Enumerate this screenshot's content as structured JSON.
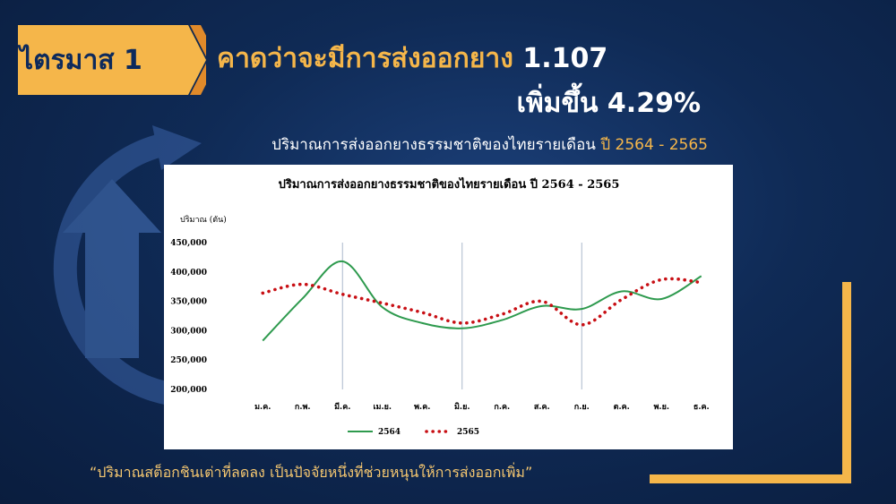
{
  "badge": {
    "label": "ไตรมาส 1"
  },
  "headline": {
    "line1": "คาดว่าจะมีการส่งออกยาง ",
    "value": "1.107",
    "line2": "เพิ่มขึ้น 4.29%"
  },
  "subtitle": {
    "text": "ปริมาณการส่งออกยางธรรมชาติของไทยรายเดือน ",
    "years": "ปี 2564 - 2565"
  },
  "quote": "“ปริมาณสต็อกชินเต่าที่ลดลง เป็นปัจจัยหนึ่งที่ช่วยหนุนให้การส่งออกเพิ่ม”",
  "colors": {
    "accent": "#f5b64a",
    "navy": "#0f2a55",
    "series_2564": "#2e9a4e",
    "series_2565": "#c80f14"
  },
  "chart_data": {
    "type": "line",
    "title": "ปริมาณการส่งออกยางธรรมชาติของไทยรายเดือน ปี 2564 -  2565",
    "ylabel": "ปริมาณ (ตัน)",
    "xlabel": "",
    "ylim": [
      200000,
      450000
    ],
    "yticks": [
      "200,000",
      "250,000",
      "300,000",
      "350,000",
      "400,000",
      "450,000"
    ],
    "categories": [
      "ม.ค.",
      "ก.พ.",
      "มี.ค.",
      "เม.ย.",
      "พ.ค.",
      "มิ.ย.",
      "ก.ค.",
      "ส.ค.",
      "ก.ย.",
      "ต.ค.",
      "พ.ย.",
      "ธ.ค."
    ],
    "grid": "vertical lines at มี.ค., มิ.ย., ก.ย.",
    "legend": "bottom",
    "series": [
      {
        "name": "2564",
        "style": "solid",
        "values": [
          283000,
          355000,
          418000,
          340000,
          313000,
          304000,
          318000,
          342000,
          337000,
          367000,
          354000,
          393000
        ]
      },
      {
        "name": "2565",
        "style": "dotted",
        "values": [
          364000,
          379000,
          362000,
          347000,
          331000,
          313000,
          328000,
          350000,
          310000,
          353000,
          387000,
          382000
        ]
      }
    ]
  }
}
